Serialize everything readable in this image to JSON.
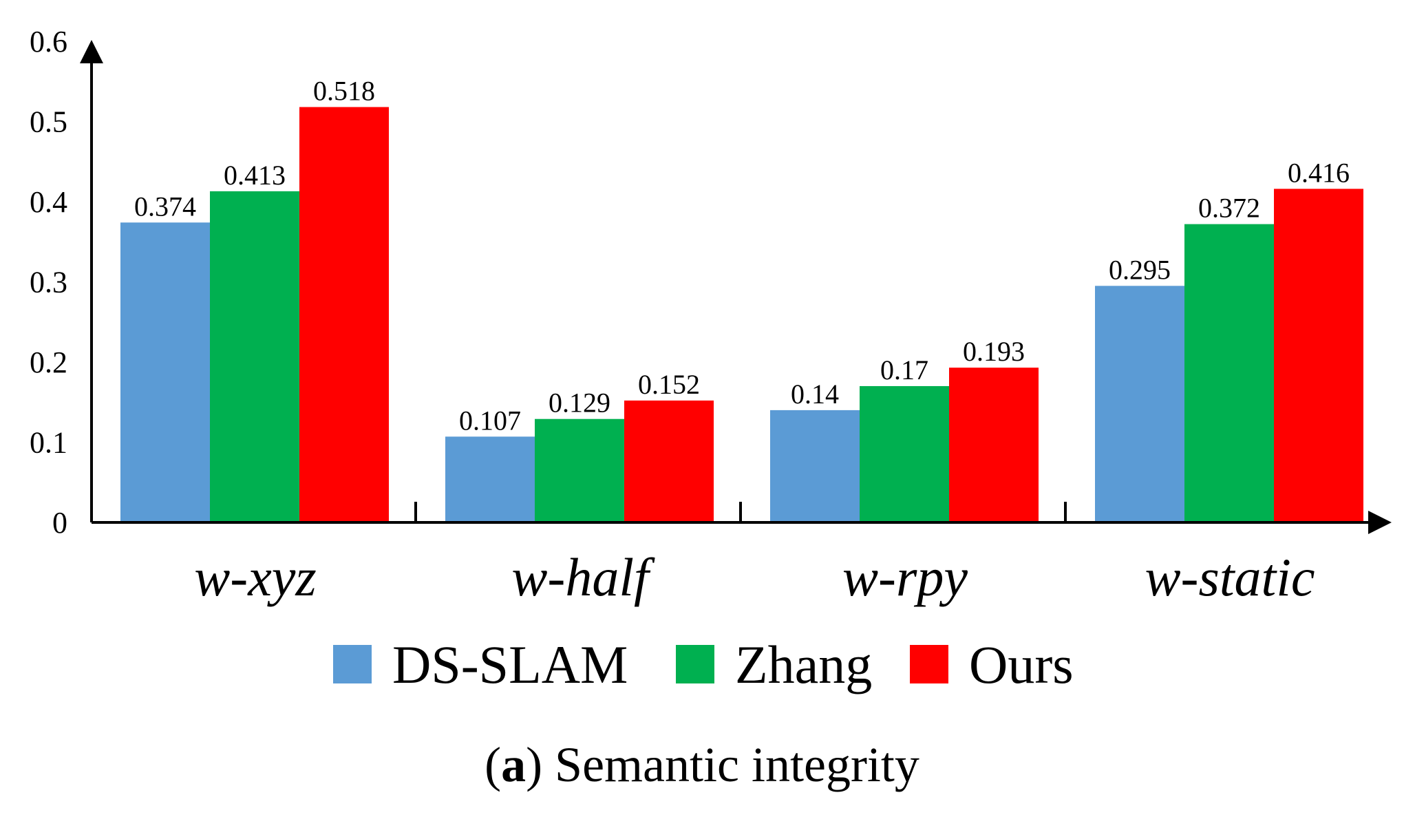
{
  "chart_data": {
    "type": "bar",
    "categories": [
      "w-xyz",
      "w-half",
      "w-rpy",
      "w-static"
    ],
    "series": [
      {
        "name": "DS-SLAM",
        "color": "#5B9BD5",
        "values": [
          0.374,
          0.107,
          0.14,
          0.295
        ]
      },
      {
        "name": "Zhang",
        "color": "#00B050",
        "values": [
          0.413,
          0.129,
          0.17,
          0.372
        ]
      },
      {
        "name": "Ours",
        "color": "#FF0000",
        "values": [
          0.518,
          0.152,
          0.193,
          0.416
        ]
      }
    ],
    "data_labels": [
      [
        "0.374",
        "0.107",
        "0.14",
        "0.295"
      ],
      [
        "0.413",
        "0.129",
        "0.17",
        "0.372"
      ],
      [
        "0.518",
        "0.152",
        "0.193",
        "0.416"
      ]
    ],
    "yticks": [
      "0",
      "0.1",
      "0.2",
      "0.3",
      "0.4",
      "0.5",
      "0.6"
    ],
    "ylim": [
      0,
      0.6
    ],
    "grid": false,
    "legend_position": "bottom",
    "title": "",
    "xlabel": "",
    "ylabel": "",
    "caption": {
      "letter": "a",
      "open": "(",
      "close": ")",
      "text": " Semantic integrity"
    }
  }
}
